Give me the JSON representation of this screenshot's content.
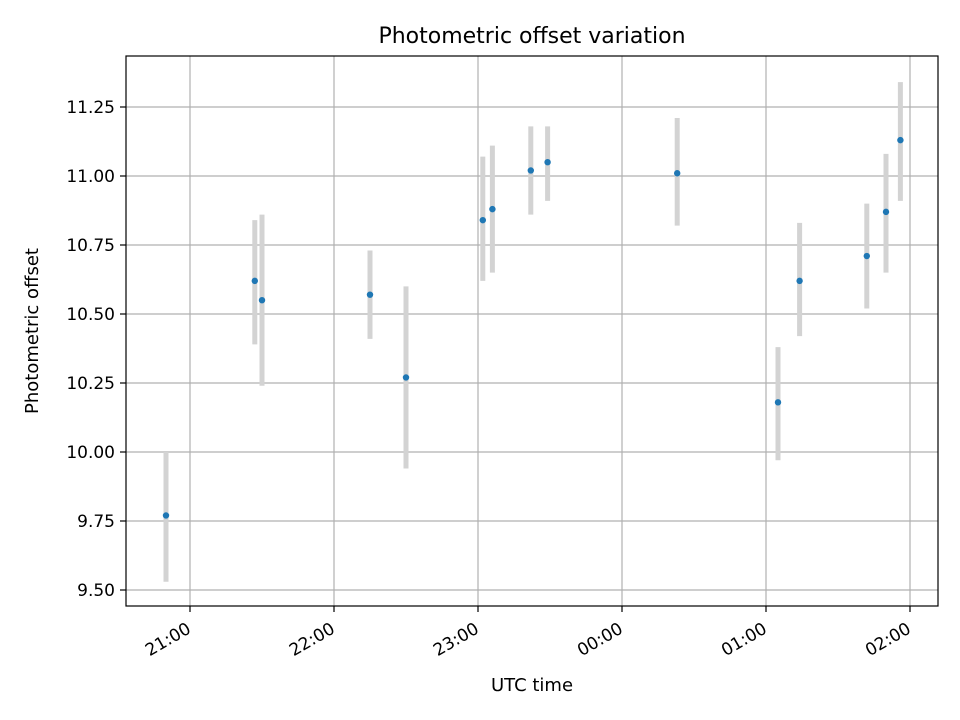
{
  "chart_data": {
    "type": "scatter",
    "title": "Photometric offset variation",
    "xlabel": "UTC time",
    "ylabel": "Photometric offset",
    "x_axis": "time",
    "x_ticks": [
      "21:00",
      "22:00",
      "23:00",
      "00:00",
      "01:00",
      "02:00"
    ],
    "y_ticks": [
      "9.50",
      "9.75",
      "10.00",
      "10.25",
      "10.50",
      "10.75",
      "11.00",
      "11.25"
    ],
    "ylim": [
      9.45,
      11.43
    ],
    "grid": true,
    "marker_color": "#1f77b4",
    "errorbar_color": "#d3d3d3",
    "points": [
      {
        "x": "20:50",
        "y": 9.77,
        "yerr_low": 9.53,
        "yerr_high": 10.0
      },
      {
        "x": "21:27",
        "y": 10.62,
        "yerr_low": 10.39,
        "yerr_high": 10.84
      },
      {
        "x": "21:30",
        "y": 10.55,
        "yerr_low": 10.24,
        "yerr_high": 10.86
      },
      {
        "x": "22:15",
        "y": 10.57,
        "yerr_low": 10.41,
        "yerr_high": 10.73
      },
      {
        "x": "22:30",
        "y": 10.27,
        "yerr_low": 9.94,
        "yerr_high": 10.6
      },
      {
        "x": "23:02",
        "y": 10.84,
        "yerr_low": 10.62,
        "yerr_high": 11.07
      },
      {
        "x": "23:06",
        "y": 10.88,
        "yerr_low": 10.65,
        "yerr_high": 11.11
      },
      {
        "x": "23:22",
        "y": 11.02,
        "yerr_low": 10.86,
        "yerr_high": 11.18
      },
      {
        "x": "23:29",
        "y": 11.05,
        "yerr_low": 10.91,
        "yerr_high": 11.18
      },
      {
        "x": "00:23",
        "y": 11.01,
        "yerr_low": 10.82,
        "yerr_high": 11.21
      },
      {
        "x": "01:05",
        "y": 10.18,
        "yerr_low": 9.97,
        "yerr_high": 10.38
      },
      {
        "x": "01:14",
        "y": 10.62,
        "yerr_low": 10.42,
        "yerr_high": 10.83
      },
      {
        "x": "01:42",
        "y": 10.71,
        "yerr_low": 10.52,
        "yerr_high": 10.9
      },
      {
        "x": "01:50",
        "y": 10.87,
        "yerr_low": 10.65,
        "yerr_high": 11.08
      },
      {
        "x": "01:56",
        "y": 11.13,
        "yerr_low": 10.91,
        "yerr_high": 11.34
      }
    ]
  }
}
